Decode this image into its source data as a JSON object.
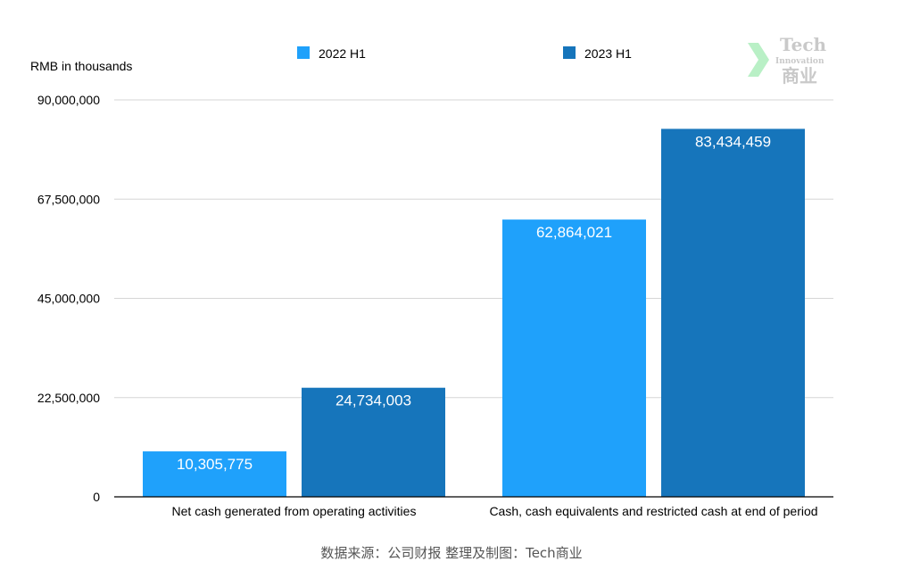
{
  "chart_data": {
    "type": "bar",
    "ylabel": "RMB in thousands",
    "categories": [
      "Net cash generated from operating activities",
      "Cash, cash equivalents and restricted cash at end of period"
    ],
    "series": [
      {
        "name": "2022 H1",
        "color": "#1fa1fb",
        "values": [
          10305775,
          62864021
        ],
        "value_labels": [
          "10,305,775",
          "62,864,021"
        ]
      },
      {
        "name": "2023 H1",
        "color": "#1675bb",
        "values": [
          24734003,
          83434459
        ],
        "value_labels": [
          "24,734,003",
          "83,434,459"
        ]
      }
    ],
    "ylim": [
      0,
      90000000
    ],
    "yticks": [
      0,
      22500000,
      45000000,
      67500000,
      90000000
    ],
    "ytick_labels": [
      "0",
      "22,500,000",
      "45,000,000",
      "67,500,000",
      "90,000,000"
    ],
    "grid": true,
    "legend": "top"
  },
  "source_note": "数据来源：公司财报 整理及制图：Tech商业",
  "watermark": {
    "line1": "Tech",
    "line2": "Innovation",
    "line3": "商业"
  }
}
